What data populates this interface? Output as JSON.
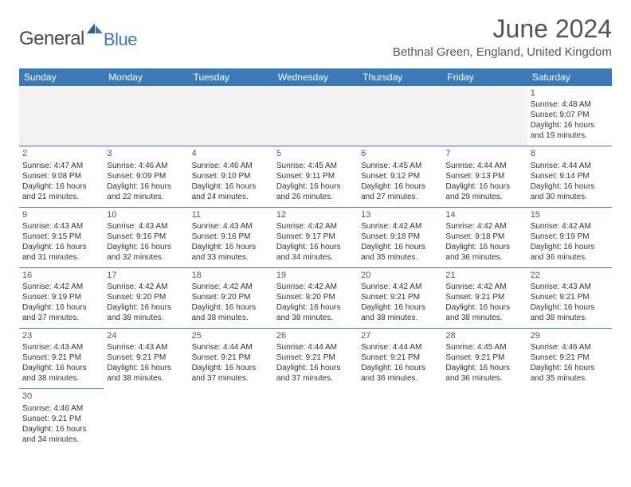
{
  "logo": {
    "general": "General",
    "blue": "Blue"
  },
  "title": "June 2024",
  "location": "Bethnal Green, England, United Kingdom",
  "colors": {
    "headerBg": "#3a7ab8",
    "headerText": "#ffffff",
    "bodyText": "#333333",
    "titleText": "#555555"
  },
  "dayHeaders": [
    "Sunday",
    "Monday",
    "Tuesday",
    "Wednesday",
    "Thursday",
    "Friday",
    "Saturday"
  ],
  "weeks": [
    [
      null,
      null,
      null,
      null,
      null,
      null,
      {
        "d": "1",
        "sr": "Sunrise: 4:48 AM",
        "ss": "Sunset: 9:07 PM",
        "dl1": "Daylight: 16 hours",
        "dl2": "and 19 minutes."
      }
    ],
    [
      {
        "d": "2",
        "sr": "Sunrise: 4:47 AM",
        "ss": "Sunset: 9:08 PM",
        "dl1": "Daylight: 16 hours",
        "dl2": "and 21 minutes."
      },
      {
        "d": "3",
        "sr": "Sunrise: 4:46 AM",
        "ss": "Sunset: 9:09 PM",
        "dl1": "Daylight: 16 hours",
        "dl2": "and 22 minutes."
      },
      {
        "d": "4",
        "sr": "Sunrise: 4:46 AM",
        "ss": "Sunset: 9:10 PM",
        "dl1": "Daylight: 16 hours",
        "dl2": "and 24 minutes."
      },
      {
        "d": "5",
        "sr": "Sunrise: 4:45 AM",
        "ss": "Sunset: 9:11 PM",
        "dl1": "Daylight: 16 hours",
        "dl2": "and 26 minutes."
      },
      {
        "d": "6",
        "sr": "Sunrise: 4:45 AM",
        "ss": "Sunset: 9:12 PM",
        "dl1": "Daylight: 16 hours",
        "dl2": "and 27 minutes."
      },
      {
        "d": "7",
        "sr": "Sunrise: 4:44 AM",
        "ss": "Sunset: 9:13 PM",
        "dl1": "Daylight: 16 hours",
        "dl2": "and 29 minutes."
      },
      {
        "d": "8",
        "sr": "Sunrise: 4:44 AM",
        "ss": "Sunset: 9:14 PM",
        "dl1": "Daylight: 16 hours",
        "dl2": "and 30 minutes."
      }
    ],
    [
      {
        "d": "9",
        "sr": "Sunrise: 4:43 AM",
        "ss": "Sunset: 9:15 PM",
        "dl1": "Daylight: 16 hours",
        "dl2": "and 31 minutes."
      },
      {
        "d": "10",
        "sr": "Sunrise: 4:43 AM",
        "ss": "Sunset: 9:16 PM",
        "dl1": "Daylight: 16 hours",
        "dl2": "and 32 minutes."
      },
      {
        "d": "11",
        "sr": "Sunrise: 4:43 AM",
        "ss": "Sunset: 9:16 PM",
        "dl1": "Daylight: 16 hours",
        "dl2": "and 33 minutes."
      },
      {
        "d": "12",
        "sr": "Sunrise: 4:42 AM",
        "ss": "Sunset: 9:17 PM",
        "dl1": "Daylight: 16 hours",
        "dl2": "and 34 minutes."
      },
      {
        "d": "13",
        "sr": "Sunrise: 4:42 AM",
        "ss": "Sunset: 9:18 PM",
        "dl1": "Daylight: 16 hours",
        "dl2": "and 35 minutes."
      },
      {
        "d": "14",
        "sr": "Sunrise: 4:42 AM",
        "ss": "Sunset: 9:18 PM",
        "dl1": "Daylight: 16 hours",
        "dl2": "and 36 minutes."
      },
      {
        "d": "15",
        "sr": "Sunrise: 4:42 AM",
        "ss": "Sunset: 9:19 PM",
        "dl1": "Daylight: 16 hours",
        "dl2": "and 36 minutes."
      }
    ],
    [
      {
        "d": "16",
        "sr": "Sunrise: 4:42 AM",
        "ss": "Sunset: 9:19 PM",
        "dl1": "Daylight: 16 hours",
        "dl2": "and 37 minutes."
      },
      {
        "d": "17",
        "sr": "Sunrise: 4:42 AM",
        "ss": "Sunset: 9:20 PM",
        "dl1": "Daylight: 16 hours",
        "dl2": "and 38 minutes."
      },
      {
        "d": "18",
        "sr": "Sunrise: 4:42 AM",
        "ss": "Sunset: 9:20 PM",
        "dl1": "Daylight: 16 hours",
        "dl2": "and 38 minutes."
      },
      {
        "d": "19",
        "sr": "Sunrise: 4:42 AM",
        "ss": "Sunset: 9:20 PM",
        "dl1": "Daylight: 16 hours",
        "dl2": "and 38 minutes."
      },
      {
        "d": "20",
        "sr": "Sunrise: 4:42 AM",
        "ss": "Sunset: 9:21 PM",
        "dl1": "Daylight: 16 hours",
        "dl2": "and 38 minutes."
      },
      {
        "d": "21",
        "sr": "Sunrise: 4:42 AM",
        "ss": "Sunset: 9:21 PM",
        "dl1": "Daylight: 16 hours",
        "dl2": "and 38 minutes."
      },
      {
        "d": "22",
        "sr": "Sunrise: 4:43 AM",
        "ss": "Sunset: 9:21 PM",
        "dl1": "Daylight: 16 hours",
        "dl2": "and 38 minutes."
      }
    ],
    [
      {
        "d": "23",
        "sr": "Sunrise: 4:43 AM",
        "ss": "Sunset: 9:21 PM",
        "dl1": "Daylight: 16 hours",
        "dl2": "and 38 minutes."
      },
      {
        "d": "24",
        "sr": "Sunrise: 4:43 AM",
        "ss": "Sunset: 9:21 PM",
        "dl1": "Daylight: 16 hours",
        "dl2": "and 38 minutes."
      },
      {
        "d": "25",
        "sr": "Sunrise: 4:44 AM",
        "ss": "Sunset: 9:21 PM",
        "dl1": "Daylight: 16 hours",
        "dl2": "and 37 minutes."
      },
      {
        "d": "26",
        "sr": "Sunrise: 4:44 AM",
        "ss": "Sunset: 9:21 PM",
        "dl1": "Daylight: 16 hours",
        "dl2": "and 37 minutes."
      },
      {
        "d": "27",
        "sr": "Sunrise: 4:44 AM",
        "ss": "Sunset: 9:21 PM",
        "dl1": "Daylight: 16 hours",
        "dl2": "and 36 minutes."
      },
      {
        "d": "28",
        "sr": "Sunrise: 4:45 AM",
        "ss": "Sunset: 9:21 PM",
        "dl1": "Daylight: 16 hours",
        "dl2": "and 36 minutes."
      },
      {
        "d": "29",
        "sr": "Sunrise: 4:46 AM",
        "ss": "Sunset: 9:21 PM",
        "dl1": "Daylight: 16 hours",
        "dl2": "and 35 minutes."
      }
    ],
    [
      {
        "d": "30",
        "sr": "Sunrise: 4:46 AM",
        "ss": "Sunset: 9:21 PM",
        "dl1": "Daylight: 16 hours",
        "dl2": "and 34 minutes."
      },
      null,
      null,
      null,
      null,
      null,
      null
    ]
  ]
}
